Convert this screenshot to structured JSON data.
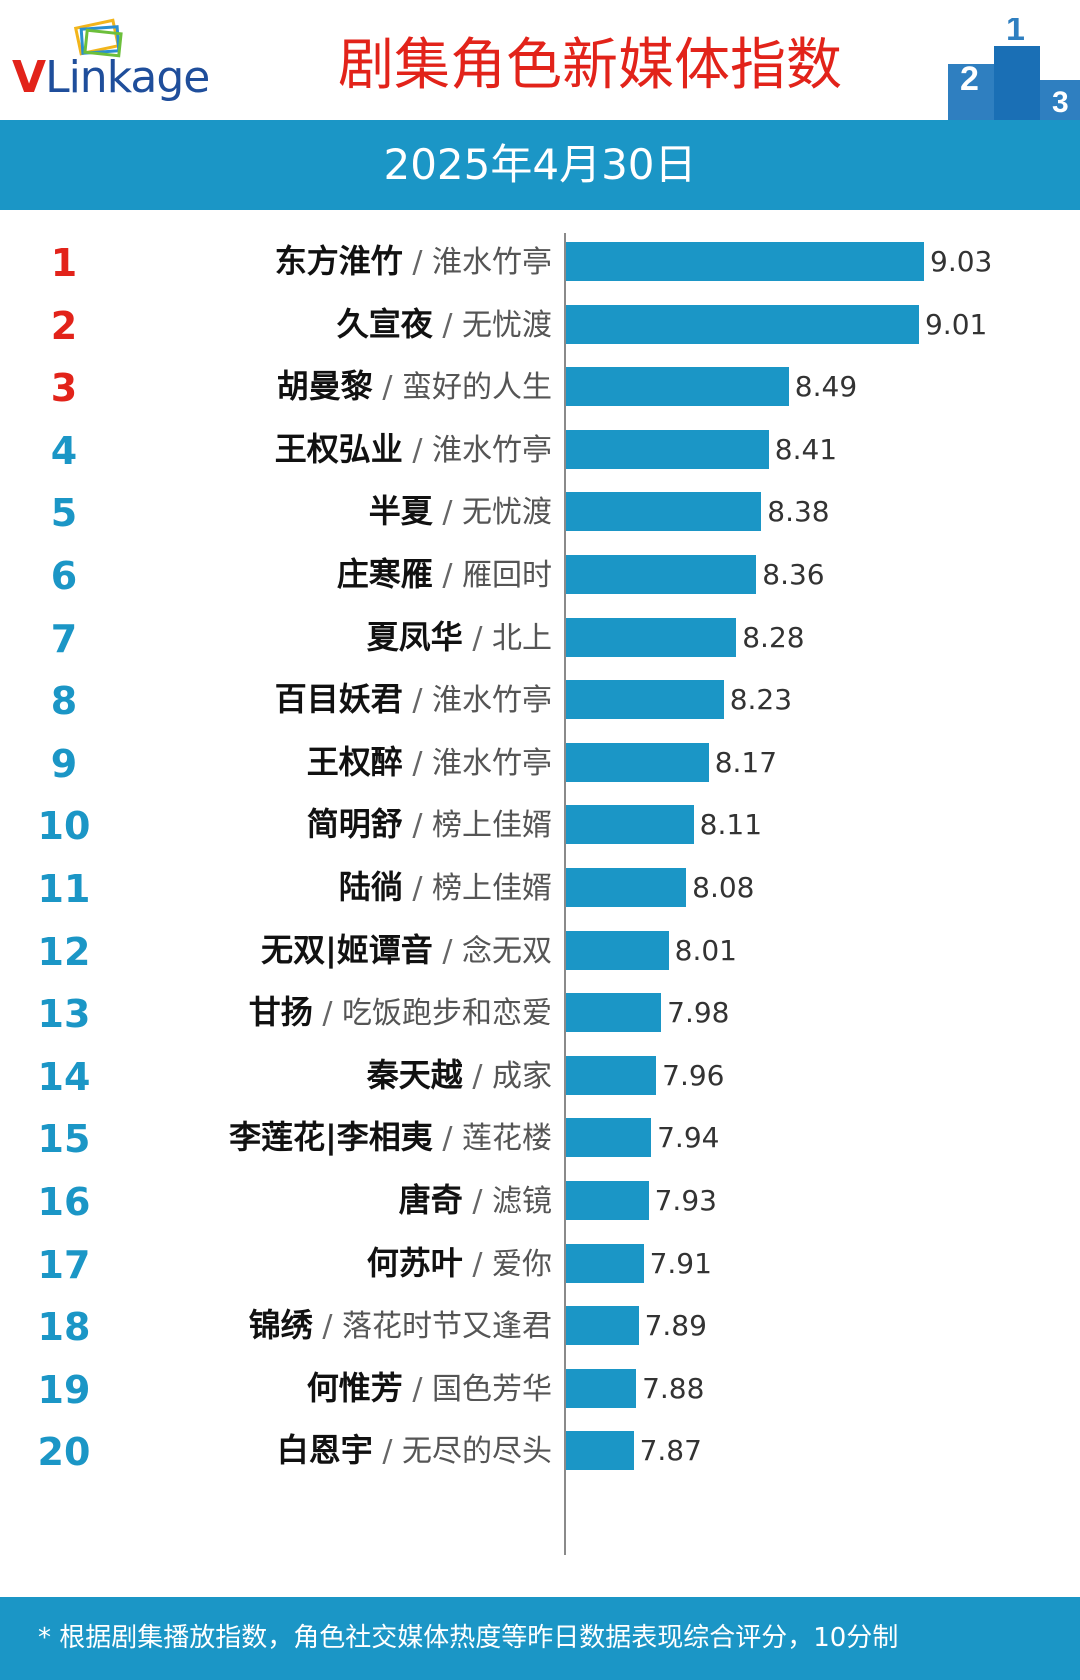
{
  "header": {
    "logo_v": "V",
    "logo_rest": "Linkage",
    "title": "剧集角色新媒体指数",
    "podium_labels": [
      "2",
      "1",
      "3"
    ]
  },
  "date": "2025年4月30日",
  "colors": {
    "accent": "#1b96c6",
    "title_red": "#e2231a",
    "rank_top3": "#e2231a",
    "rank_rest": "#1b96c6"
  },
  "chart_data": {
    "type": "bar",
    "orientation": "horizontal",
    "title": "剧集角色新媒体指数",
    "categories": [
      "东方淮竹 / 淮水竹亭",
      "久宣夜 / 无忧渡",
      "胡曼黎 / 蛮好的人生",
      "王权弘业 / 淮水竹亭",
      "半夏 / 无忧渡",
      "庄寒雁 / 雁回时",
      "夏凤华 / 北上",
      "百目妖君 / 淮水竹亭",
      "王权醉 / 淮水竹亭",
      "简明舒 / 榜上佳婿",
      "陆徜 / 榜上佳婿",
      "无双|姬谭音 / 念无双",
      "甘扬 / 吃饭跑步和恋爱",
      "秦天越 / 成家",
      "李莲花|李相夷 / 莲花楼",
      "唐奇 / 滤镜",
      "何苏叶 / 爱你",
      "锦绣 / 落花时节又逢君",
      "何惟芳 / 国色芳华",
      "白恩宇 / 无尽的尽头"
    ],
    "values": [
      9.03,
      9.01,
      8.49,
      8.41,
      8.38,
      8.36,
      8.28,
      8.23,
      8.17,
      8.11,
      8.08,
      8.01,
      7.98,
      7.96,
      7.94,
      7.93,
      7.91,
      7.89,
      7.88,
      7.87
    ],
    "value_axis_range": [
      7.6,
      9.03
    ],
    "rows": [
      {
        "rank": "1",
        "name": "东方淮竹",
        "drama": "淮水竹亭",
        "value": 9.03
      },
      {
        "rank": "2",
        "name": "久宣夜",
        "drama": "无忧渡",
        "value": 9.01
      },
      {
        "rank": "3",
        "name": "胡曼黎",
        "drama": "蛮好的人生",
        "value": 8.49
      },
      {
        "rank": "4",
        "name": "王权弘业",
        "drama": "淮水竹亭",
        "value": 8.41
      },
      {
        "rank": "5",
        "name": "半夏",
        "drama": "无忧渡",
        "value": 8.38
      },
      {
        "rank": "6",
        "name": "庄寒雁",
        "drama": "雁回时",
        "value": 8.36
      },
      {
        "rank": "7",
        "name": "夏凤华",
        "drama": "北上",
        "value": 8.28
      },
      {
        "rank": "8",
        "name": "百目妖君",
        "drama": "淮水竹亭",
        "value": 8.23
      },
      {
        "rank": "9",
        "name": "王权醉",
        "drama": "淮水竹亭",
        "value": 8.17
      },
      {
        "rank": "10",
        "name": "简明舒",
        "drama": "榜上佳婿",
        "value": 8.11
      },
      {
        "rank": "11",
        "name": "陆徜",
        "drama": "榜上佳婿",
        "value": 8.08
      },
      {
        "rank": "12",
        "name": "无双|姬谭音",
        "drama": "念无双",
        "value": 8.01
      },
      {
        "rank": "13",
        "name": "甘扬",
        "drama": "吃饭跑步和恋爱",
        "value": 7.98
      },
      {
        "rank": "14",
        "name": "秦天越",
        "drama": "成家",
        "value": 7.96
      },
      {
        "rank": "15",
        "name": "李莲花|李相夷",
        "drama": "莲花楼",
        "value": 7.94
      },
      {
        "rank": "16",
        "name": "唐奇",
        "drama": "滤镜",
        "value": 7.93
      },
      {
        "rank": "17",
        "name": "何苏叶",
        "drama": "爱你",
        "value": 7.91
      },
      {
        "rank": "18",
        "name": "锦绣",
        "drama": "落花时节又逢君",
        "value": 7.89
      },
      {
        "rank": "19",
        "name": "何惟芳",
        "drama": "国色芳华",
        "value": 7.88
      },
      {
        "rank": "20",
        "name": "白恩宇",
        "drama": "无尽的尽头",
        "value": 7.87
      }
    ],
    "separator": " / "
  },
  "footer": {
    "note": "* 根据剧集播放指数，角色社交媒体热度等昨日数据表现综合评分，10分制"
  }
}
